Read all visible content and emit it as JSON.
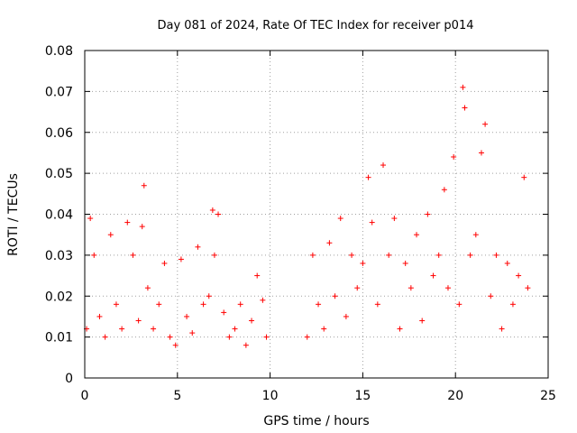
{
  "chart_data": {
    "type": "scatter",
    "title": "Day 081 of 2024, Rate Of TEC Index for receiver p014",
    "xlabel": "GPS time / hours",
    "ylabel": "ROTI / TECUs",
    "xlim": [
      0,
      25
    ],
    "ylim": [
      0,
      0.08
    ],
    "xticks": [
      0,
      5,
      10,
      15,
      20,
      25
    ],
    "xtick_labels": [
      "0",
      "5",
      "10",
      "15",
      "20",
      "25"
    ],
    "yticks": [
      0,
      0.01,
      0.02,
      0.03,
      0.04,
      0.05,
      0.06,
      0.07,
      0.08
    ],
    "ytick_labels": [
      "0",
      "0.01",
      "0.02",
      "0.03",
      "0.04",
      "0.05",
      "0.06",
      "0.07",
      "0.08"
    ],
    "grid": true,
    "marker": "+",
    "color": "#ff0000",
    "series": [
      {
        "name": "ROTI",
        "x": [
          0.1,
          0.3,
          0.5,
          0.8,
          1.1,
          1.4,
          1.7,
          2.0,
          2.3,
          2.6,
          2.9,
          3.1,
          3.2,
          3.4,
          3.7,
          4.0,
          4.3,
          4.6,
          4.9,
          5.2,
          5.5,
          5.8,
          6.1,
          6.4,
          6.7,
          6.9,
          7.0,
          7.2,
          7.5,
          7.8,
          8.1,
          8.4,
          8.7,
          9.0,
          9.3,
          9.6,
          9.8,
          12.0,
          12.3,
          12.6,
          12.9,
          13.2,
          13.5,
          13.8,
          14.1,
          14.4,
          14.7,
          15.0,
          15.3,
          15.5,
          15.8,
          16.1,
          16.4,
          16.7,
          17.0,
          17.3,
          17.6,
          17.9,
          18.2,
          18.5,
          18.8,
          19.1,
          19.4,
          19.6,
          19.9,
          20.2,
          20.4,
          20.5,
          20.8,
          21.1,
          21.4,
          21.6,
          21.9,
          22.2,
          22.5,
          22.8,
          23.1,
          23.4,
          23.7,
          23.9
        ],
        "y": [
          0.012,
          0.039,
          0.03,
          0.015,
          0.01,
          0.035,
          0.018,
          0.012,
          0.038,
          0.03,
          0.014,
          0.037,
          0.047,
          0.022,
          0.012,
          0.018,
          0.028,
          0.01,
          0.008,
          0.029,
          0.015,
          0.011,
          0.032,
          0.018,
          0.02,
          0.041,
          0.03,
          0.04,
          0.016,
          0.01,
          0.012,
          0.018,
          0.008,
          0.014,
          0.025,
          0.019,
          0.01,
          0.01,
          0.03,
          0.018,
          0.012,
          0.033,
          0.02,
          0.039,
          0.015,
          0.03,
          0.022,
          0.028,
          0.049,
          0.038,
          0.018,
          0.052,
          0.03,
          0.039,
          0.012,
          0.028,
          0.022,
          0.035,
          0.014,
          0.04,
          0.025,
          0.03,
          0.046,
          0.022,
          0.054,
          0.018,
          0.071,
          0.066,
          0.03,
          0.035,
          0.055,
          0.062,
          0.02,
          0.03,
          0.012,
          0.028,
          0.018,
          0.025,
          0.049,
          0.022
        ]
      }
    ]
  }
}
